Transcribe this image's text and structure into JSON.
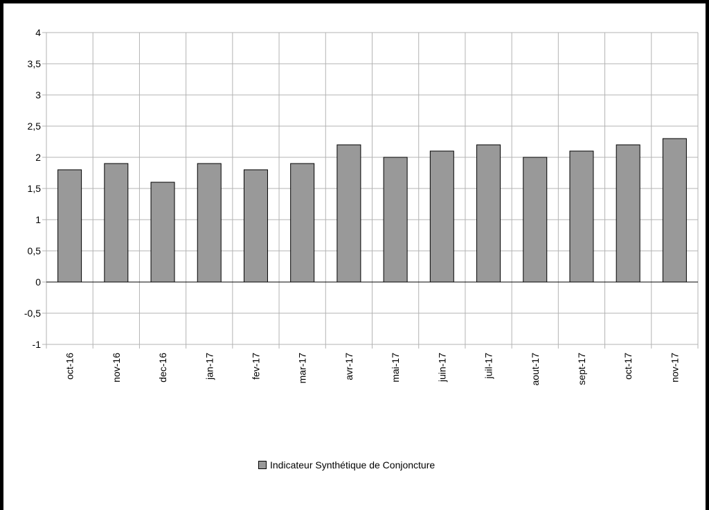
{
  "chart_data": {
    "type": "bar",
    "categories": [
      "oct-16",
      "nov-16",
      "dec-16",
      "jan-17",
      "fev-17",
      "mar-17",
      "avr-17",
      "mai-17",
      "juin-17",
      "juil-17",
      "aout-17",
      "sept-17",
      "oct-17",
      "nov-17"
    ],
    "series": [
      {
        "name": "Indicateur Synthétique de Conjoncture",
        "values": [
          1.8,
          1.9,
          1.6,
          1.9,
          1.8,
          1.9,
          2.2,
          2.0,
          2.1,
          2.2,
          2.0,
          2.1,
          2.2,
          2.3
        ]
      }
    ],
    "yticks": [
      "4",
      "3,5",
      "3",
      "2,5",
      "2",
      "1,5",
      "1",
      "0,5",
      "0",
      "-0,5",
      "-1"
    ],
    "ylim": [
      -1,
      4
    ],
    "grid": true,
    "legend_position": "bottom",
    "colors": {
      "bar": "#999999",
      "bar_stroke": "#000000",
      "grid": "#b3b3b3",
      "zero_line": "#000000"
    }
  }
}
